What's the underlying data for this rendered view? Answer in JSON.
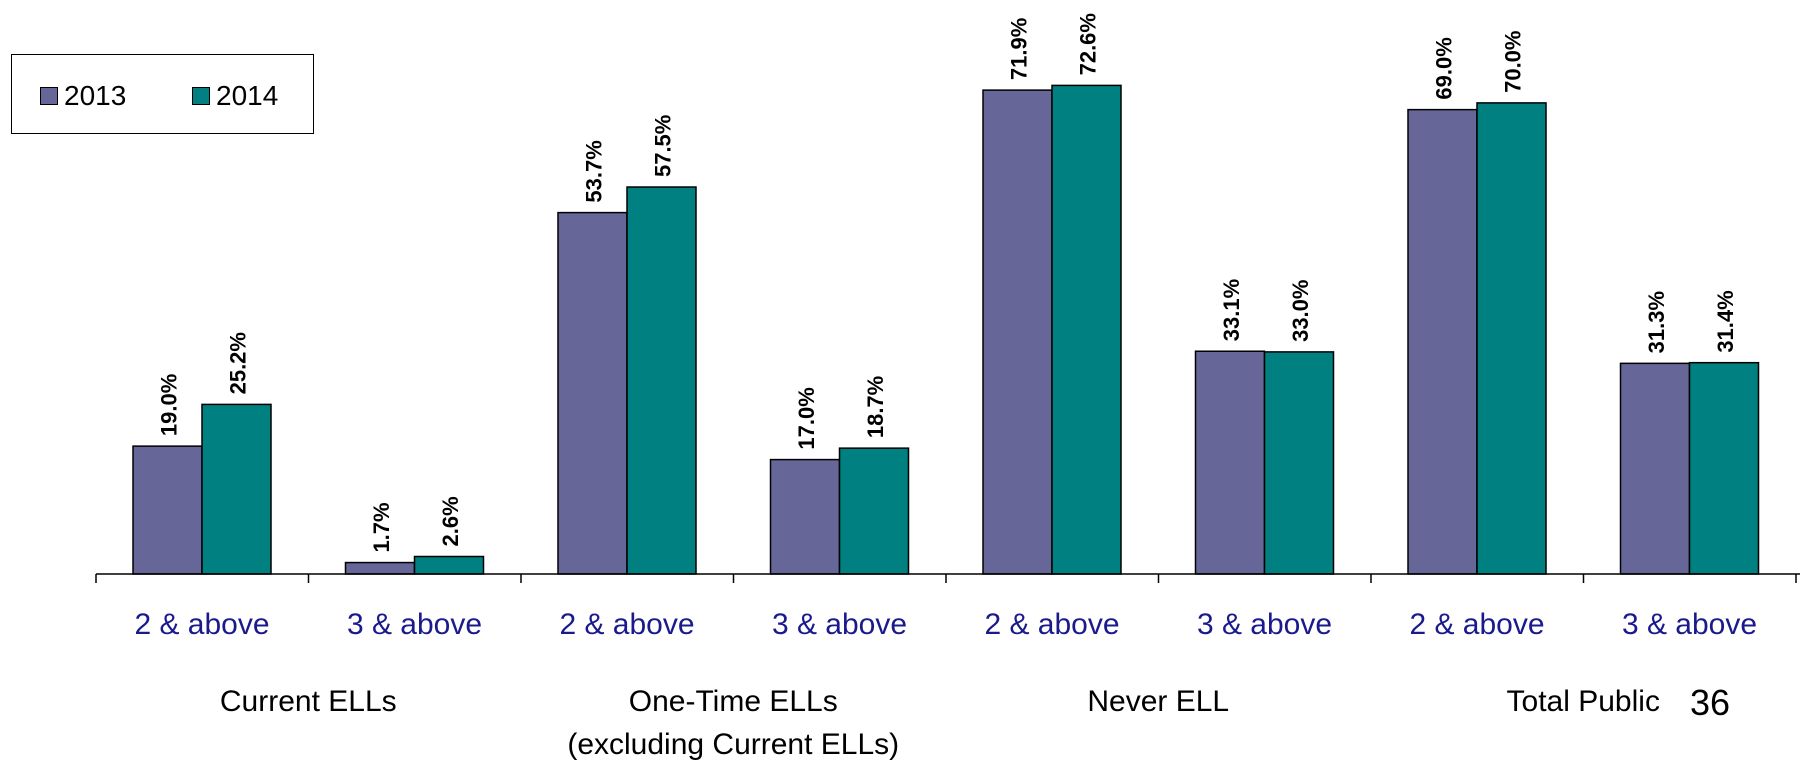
{
  "colors": {
    "2013": "#666699",
    "2014": "#008080",
    "tick_label": "#1a1a8c"
  },
  "legend": {
    "item_2013": "2013",
    "item_2014": "2014"
  },
  "page_number": "36",
  "chart_data": {
    "type": "bar",
    "title": "",
    "xlabel": "",
    "ylabel": "",
    "ylim": [
      0,
      80
    ],
    "grid": false,
    "legend_position": "top-left",
    "categories": [
      "2 & above",
      "3 & above",
      "2 & above",
      "3 & above",
      "2 & above",
      "3 & above",
      "2 & above",
      "3 & above"
    ],
    "groups": [
      {
        "label": "Current ELLs",
        "categories": [
          0,
          1
        ]
      },
      {
        "label": "One-Time ELLs\n(excluding Current ELLs)",
        "categories": [
          2,
          3
        ]
      },
      {
        "label": "Never ELL",
        "categories": [
          4,
          5
        ]
      },
      {
        "label": "Total Public",
        "categories": [
          6,
          7
        ]
      }
    ],
    "series": [
      {
        "name": "2013",
        "values": [
          19.0,
          1.7,
          53.7,
          17.0,
          71.9,
          33.1,
          69.0,
          31.3
        ],
        "labels": [
          "19.0%",
          "1.7%",
          "53.7%",
          "17.0%",
          "71.9%",
          "33.1%",
          "69.0%",
          "31.3%"
        ]
      },
      {
        "name": "2014",
        "values": [
          25.2,
          2.6,
          57.5,
          18.7,
          72.6,
          33.0,
          70.0,
          31.4
        ],
        "labels": [
          "25.2%",
          "2.6%",
          "57.5%",
          "18.7%",
          "72.6%",
          "33.0%",
          "70.0%",
          "31.4%"
        ]
      }
    ]
  }
}
